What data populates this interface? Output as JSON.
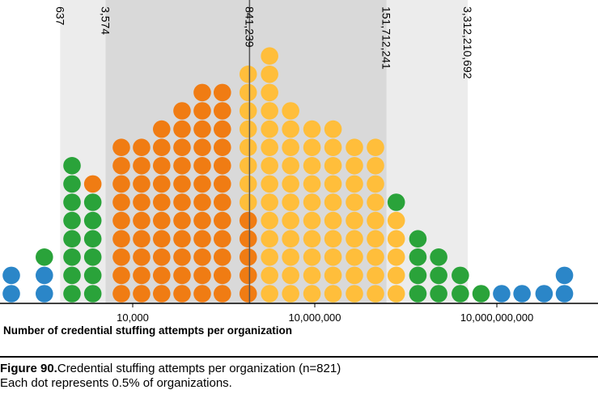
{
  "chart_data": {
    "type": "dot-histogram",
    "x_scale": "log",
    "x_axis_ticks": [
      "10,000",
      "10,000,000",
      "10,000,000,000"
    ],
    "xlabel": "Number of credential stuffing attempts per organization",
    "percentile_markers": [
      {
        "value": 637,
        "label": "637"
      },
      {
        "value": 3574,
        "label": "3,574"
      },
      {
        "value": 841239,
        "label": "841,239"
      },
      {
        "value": 151712241,
        "label": "151,712,241"
      },
      {
        "value": 3312210692,
        "label": "3,312,210,692"
      }
    ],
    "colors": {
      "outer": "#2b86c8",
      "tail": "#2aa33a",
      "lower_mid": "#f07c13",
      "upper_mid": "#ffbe3b",
      "outer_band": "#ececec",
      "inner_band": "#d9d9d9"
    },
    "dot_unit": "0.5% of organizations",
    "columns": [
      {
        "x": 100,
        "dots": [
          "outer",
          "outer"
        ]
      },
      {
        "x": 350,
        "dots": [
          "outer",
          "outer",
          "tail"
        ]
      },
      {
        "x": 1000,
        "dots": [
          "tail",
          "tail",
          "tail",
          "tail",
          "tail",
          "tail",
          "tail",
          "tail"
        ]
      },
      {
        "x": 2200,
        "dots": [
          "tail",
          "tail",
          "tail",
          "tail",
          "tail",
          "tail",
          "lower_mid"
        ]
      },
      {
        "x": 6500,
        "dots": [
          "lower_mid",
          "lower_mid",
          "lower_mid",
          "lower_mid",
          "lower_mid",
          "lower_mid",
          "lower_mid",
          "lower_mid",
          "lower_mid"
        ]
      },
      {
        "x": 14000,
        "dots": [
          "lower_mid",
          "lower_mid",
          "lower_mid",
          "lower_mid",
          "lower_mid",
          "lower_mid",
          "lower_mid",
          "lower_mid",
          "lower_mid"
        ]
      },
      {
        "x": 30000,
        "dots": [
          "lower_mid",
          "lower_mid",
          "lower_mid",
          "lower_mid",
          "lower_mid",
          "lower_mid",
          "lower_mid",
          "lower_mid",
          "lower_mid",
          "lower_mid"
        ]
      },
      {
        "x": 65000,
        "dots": [
          "lower_mid",
          "lower_mid",
          "lower_mid",
          "lower_mid",
          "lower_mid",
          "lower_mid",
          "lower_mid",
          "lower_mid",
          "lower_mid",
          "lower_mid",
          "lower_mid"
        ]
      },
      {
        "x": 140000,
        "dots": [
          "lower_mid",
          "lower_mid",
          "lower_mid",
          "lower_mid",
          "lower_mid",
          "lower_mid",
          "lower_mid",
          "lower_mid",
          "lower_mid",
          "lower_mid",
          "lower_mid",
          "lower_mid"
        ]
      },
      {
        "x": 300000,
        "dots": [
          "lower_mid",
          "lower_mid",
          "lower_mid",
          "lower_mid",
          "lower_mid",
          "lower_mid",
          "lower_mid",
          "lower_mid",
          "lower_mid",
          "lower_mid",
          "lower_mid",
          "lower_mid"
        ]
      },
      {
        "x": 800000,
        "dots": [
          "lower_mid",
          "lower_mid",
          "lower_mid",
          "lower_mid",
          "lower_mid",
          "upper_mid",
          "upper_mid",
          "upper_mid",
          "upper_mid",
          "upper_mid",
          "upper_mid",
          "upper_mid",
          "upper_mid"
        ]
      },
      {
        "x": 1800000,
        "dots": [
          "upper_mid",
          "upper_mid",
          "upper_mid",
          "upper_mid",
          "upper_mid",
          "upper_mid",
          "upper_mid",
          "upper_mid",
          "upper_mid",
          "upper_mid",
          "upper_mid",
          "upper_mid",
          "upper_mid",
          "upper_mid"
        ]
      },
      {
        "x": 4000000,
        "dots": [
          "upper_mid",
          "upper_mid",
          "upper_mid",
          "upper_mid",
          "upper_mid",
          "upper_mid",
          "upper_mid",
          "upper_mid",
          "upper_mid",
          "upper_mid",
          "upper_mid"
        ]
      },
      {
        "x": 9000000,
        "dots": [
          "upper_mid",
          "upper_mid",
          "upper_mid",
          "upper_mid",
          "upper_mid",
          "upper_mid",
          "upper_mid",
          "upper_mid",
          "upper_mid",
          "upper_mid"
        ]
      },
      {
        "x": 20000000,
        "dots": [
          "upper_mid",
          "upper_mid",
          "upper_mid",
          "upper_mid",
          "upper_mid",
          "upper_mid",
          "upper_mid",
          "upper_mid",
          "upper_mid",
          "upper_mid"
        ]
      },
      {
        "x": 45000000,
        "dots": [
          "upper_mid",
          "upper_mid",
          "upper_mid",
          "upper_mid",
          "upper_mid",
          "upper_mid",
          "upper_mid",
          "upper_mid",
          "upper_mid"
        ]
      },
      {
        "x": 100000000,
        "dots": [
          "upper_mid",
          "upper_mid",
          "upper_mid",
          "upper_mid",
          "upper_mid",
          "upper_mid",
          "upper_mid",
          "upper_mid",
          "upper_mid"
        ]
      },
      {
        "x": 220000000,
        "dots": [
          "upper_mid",
          "upper_mid",
          "upper_mid",
          "upper_mid",
          "upper_mid",
          "tail"
        ]
      },
      {
        "x": 500000000,
        "dots": [
          "tail",
          "tail",
          "tail",
          "tail"
        ]
      },
      {
        "x": 1100000000,
        "dots": [
          "tail",
          "tail",
          "tail"
        ]
      },
      {
        "x": 2500000000,
        "dots": [
          "tail",
          "tail"
        ]
      },
      {
        "x": 5500000000,
        "dots": [
          "tail"
        ]
      },
      {
        "x": 12000000000,
        "dots": [
          "outer"
        ]
      },
      {
        "x": 26000000000,
        "dots": [
          "outer"
        ]
      },
      {
        "x": 60000000000,
        "dots": [
          "outer"
        ]
      },
      {
        "x": 130000000000,
        "dots": [
          "outer",
          "outer"
        ]
      }
    ]
  },
  "caption": {
    "figure_label": "Figure 90.",
    "title": "Credential stuffing attempts per organization (n=821)",
    "note": "Each dot represents 0.5% of organizations."
  }
}
